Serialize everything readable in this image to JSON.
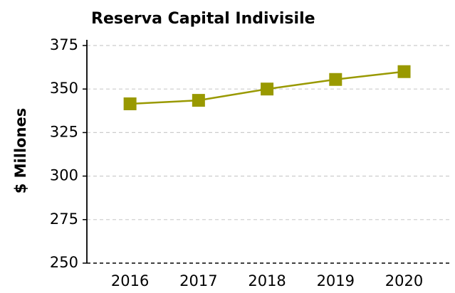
{
  "chart_data": {
    "type": "line",
    "title": "Reserva Capital Indivisile",
    "y_label": "$ Millones",
    "categories": [
      "2016",
      "2017",
      "2018",
      "2019",
      "2020"
    ],
    "values": [
      341.5,
      343.5,
      350,
      355.5,
      360
    ],
    "color": "#999900",
    "ylim": [
      250,
      375
    ],
    "yticks": [
      250,
      275,
      300,
      325,
      350,
      375
    ],
    "grid": true
  }
}
